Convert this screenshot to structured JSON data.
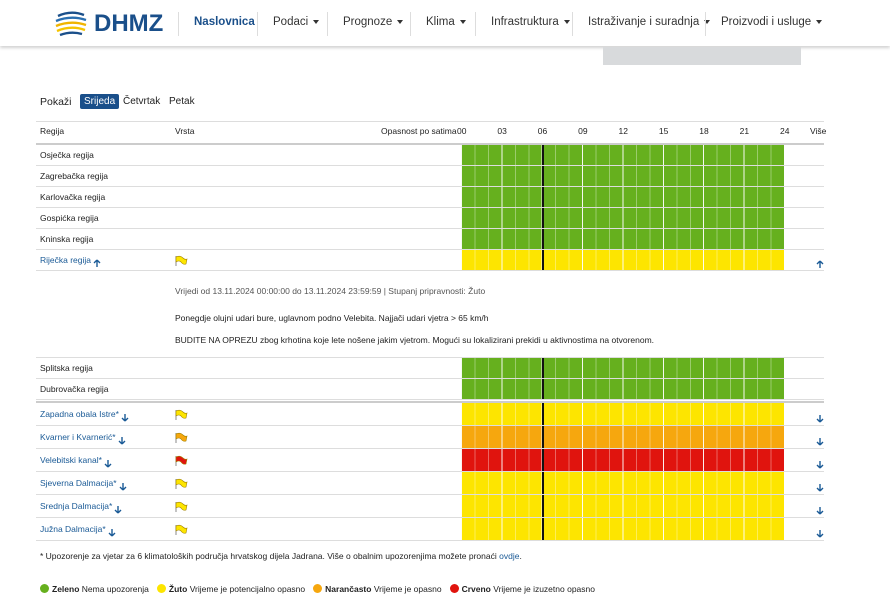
{
  "header": {
    "logo": "DHMZ",
    "nav": [
      {
        "label": "Naslovnica",
        "active": true,
        "dropdown": false
      },
      {
        "label": "Podaci",
        "dropdown": true
      },
      {
        "label": "Prognoze",
        "dropdown": true
      },
      {
        "label": "Klima",
        "dropdown": true
      },
      {
        "label": "Infrastruktura",
        "dropdown": true
      },
      {
        "label": "Istraživanje i suradnja",
        "dropdown": true
      },
      {
        "label": "Proizvodi i usluge",
        "dropdown": true
      }
    ]
  },
  "tabs": {
    "label": "Pokaži",
    "days": [
      "Srijeda",
      "Četvrtak",
      "Petak"
    ],
    "active": 0
  },
  "table": {
    "columns": {
      "region": "Regija",
      "type": "Vrsta",
      "hazard": "Opasnost po satima",
      "more": "Više"
    },
    "hours": [
      "00",
      "03",
      "06",
      "09",
      "12",
      "15",
      "18",
      "21",
      "24"
    ],
    "levels": {
      "green": "#66b01e",
      "yellow": "#fde500",
      "orange": "#f6a70e",
      "red": "#e0140e"
    },
    "groups": [
      {
        "rows": [
          {
            "name": "Osječka regija",
            "level": "green"
          },
          {
            "name": "Zagrebačka regija",
            "level": "green"
          },
          {
            "name": "Karlovačka regija",
            "level": "green"
          },
          {
            "name": "Gospićka regija",
            "level": "green"
          },
          {
            "name": "Kninska regija",
            "level": "green"
          },
          {
            "name": "Riječka regija",
            "level": "yellow",
            "link": true,
            "flag": true,
            "arrow": "up",
            "detail": {
              "valid": "Vrijedi od 13.11.2024 00:00:00 do 13.11.2024 23:59:59 | Stupanj pripravnosti: Žuto",
              "lines": [
                "Ponegdje olujni udari bure, uglavnom podno Velebita. Najjači udari vjetra > 65 km/h",
                "BUDITE NA OPREZU zbog krhotina koje lete nošene jakim vjetrom. Mogući su lokalizirani prekidi u aktivnostima na otvorenom."
              ]
            }
          },
          {
            "name": "Splitska regija",
            "level": "green"
          },
          {
            "name": "Dubrovačka regija",
            "level": "green"
          }
        ]
      },
      {
        "rows": [
          {
            "name": "Zapadna obala Istre*",
            "level": "yellow",
            "link": true,
            "flag": true,
            "arrow": "down"
          },
          {
            "name": "Kvarner i Kvarnerić*",
            "level": "orange",
            "link": true,
            "flag": true,
            "arrow": "down"
          },
          {
            "name": "Velebitski kanal*",
            "level": "red",
            "link": true,
            "flag": true,
            "arrow": "down"
          },
          {
            "name": "Sjeverna Dalmacija*",
            "level": "yellow",
            "link": true,
            "flag": true,
            "arrow": "down"
          },
          {
            "name": "Srednja Dalmacija*",
            "level": "yellow",
            "link": true,
            "flag": true,
            "arrow": "down"
          },
          {
            "name": "Južna Dalmacija*",
            "level": "yellow",
            "link": true,
            "flag": true,
            "arrow": "down"
          }
        ]
      }
    ]
  },
  "footnote": {
    "text": "* Upozorenje za vjetar za 6 klimatoloških područja hrvatskog dijela Jadrana. Više o obalnim upozorenjima možete pronaći",
    "link": "ovdje",
    "end": "."
  },
  "legend": [
    {
      "label": "Zeleno",
      "text": "Nema upozorenja",
      "color": "#66b01e"
    },
    {
      "label": "Žuto",
      "text": "Vrijeme je potencijalno opasno",
      "color": "#fde500"
    },
    {
      "label": "Narančasto",
      "text": "Vrijeme je opasno",
      "color": "#f6a70e"
    },
    {
      "label": "Crveno",
      "text": "Vrijeme je izuzetno opasno",
      "color": "#e0140e"
    }
  ]
}
